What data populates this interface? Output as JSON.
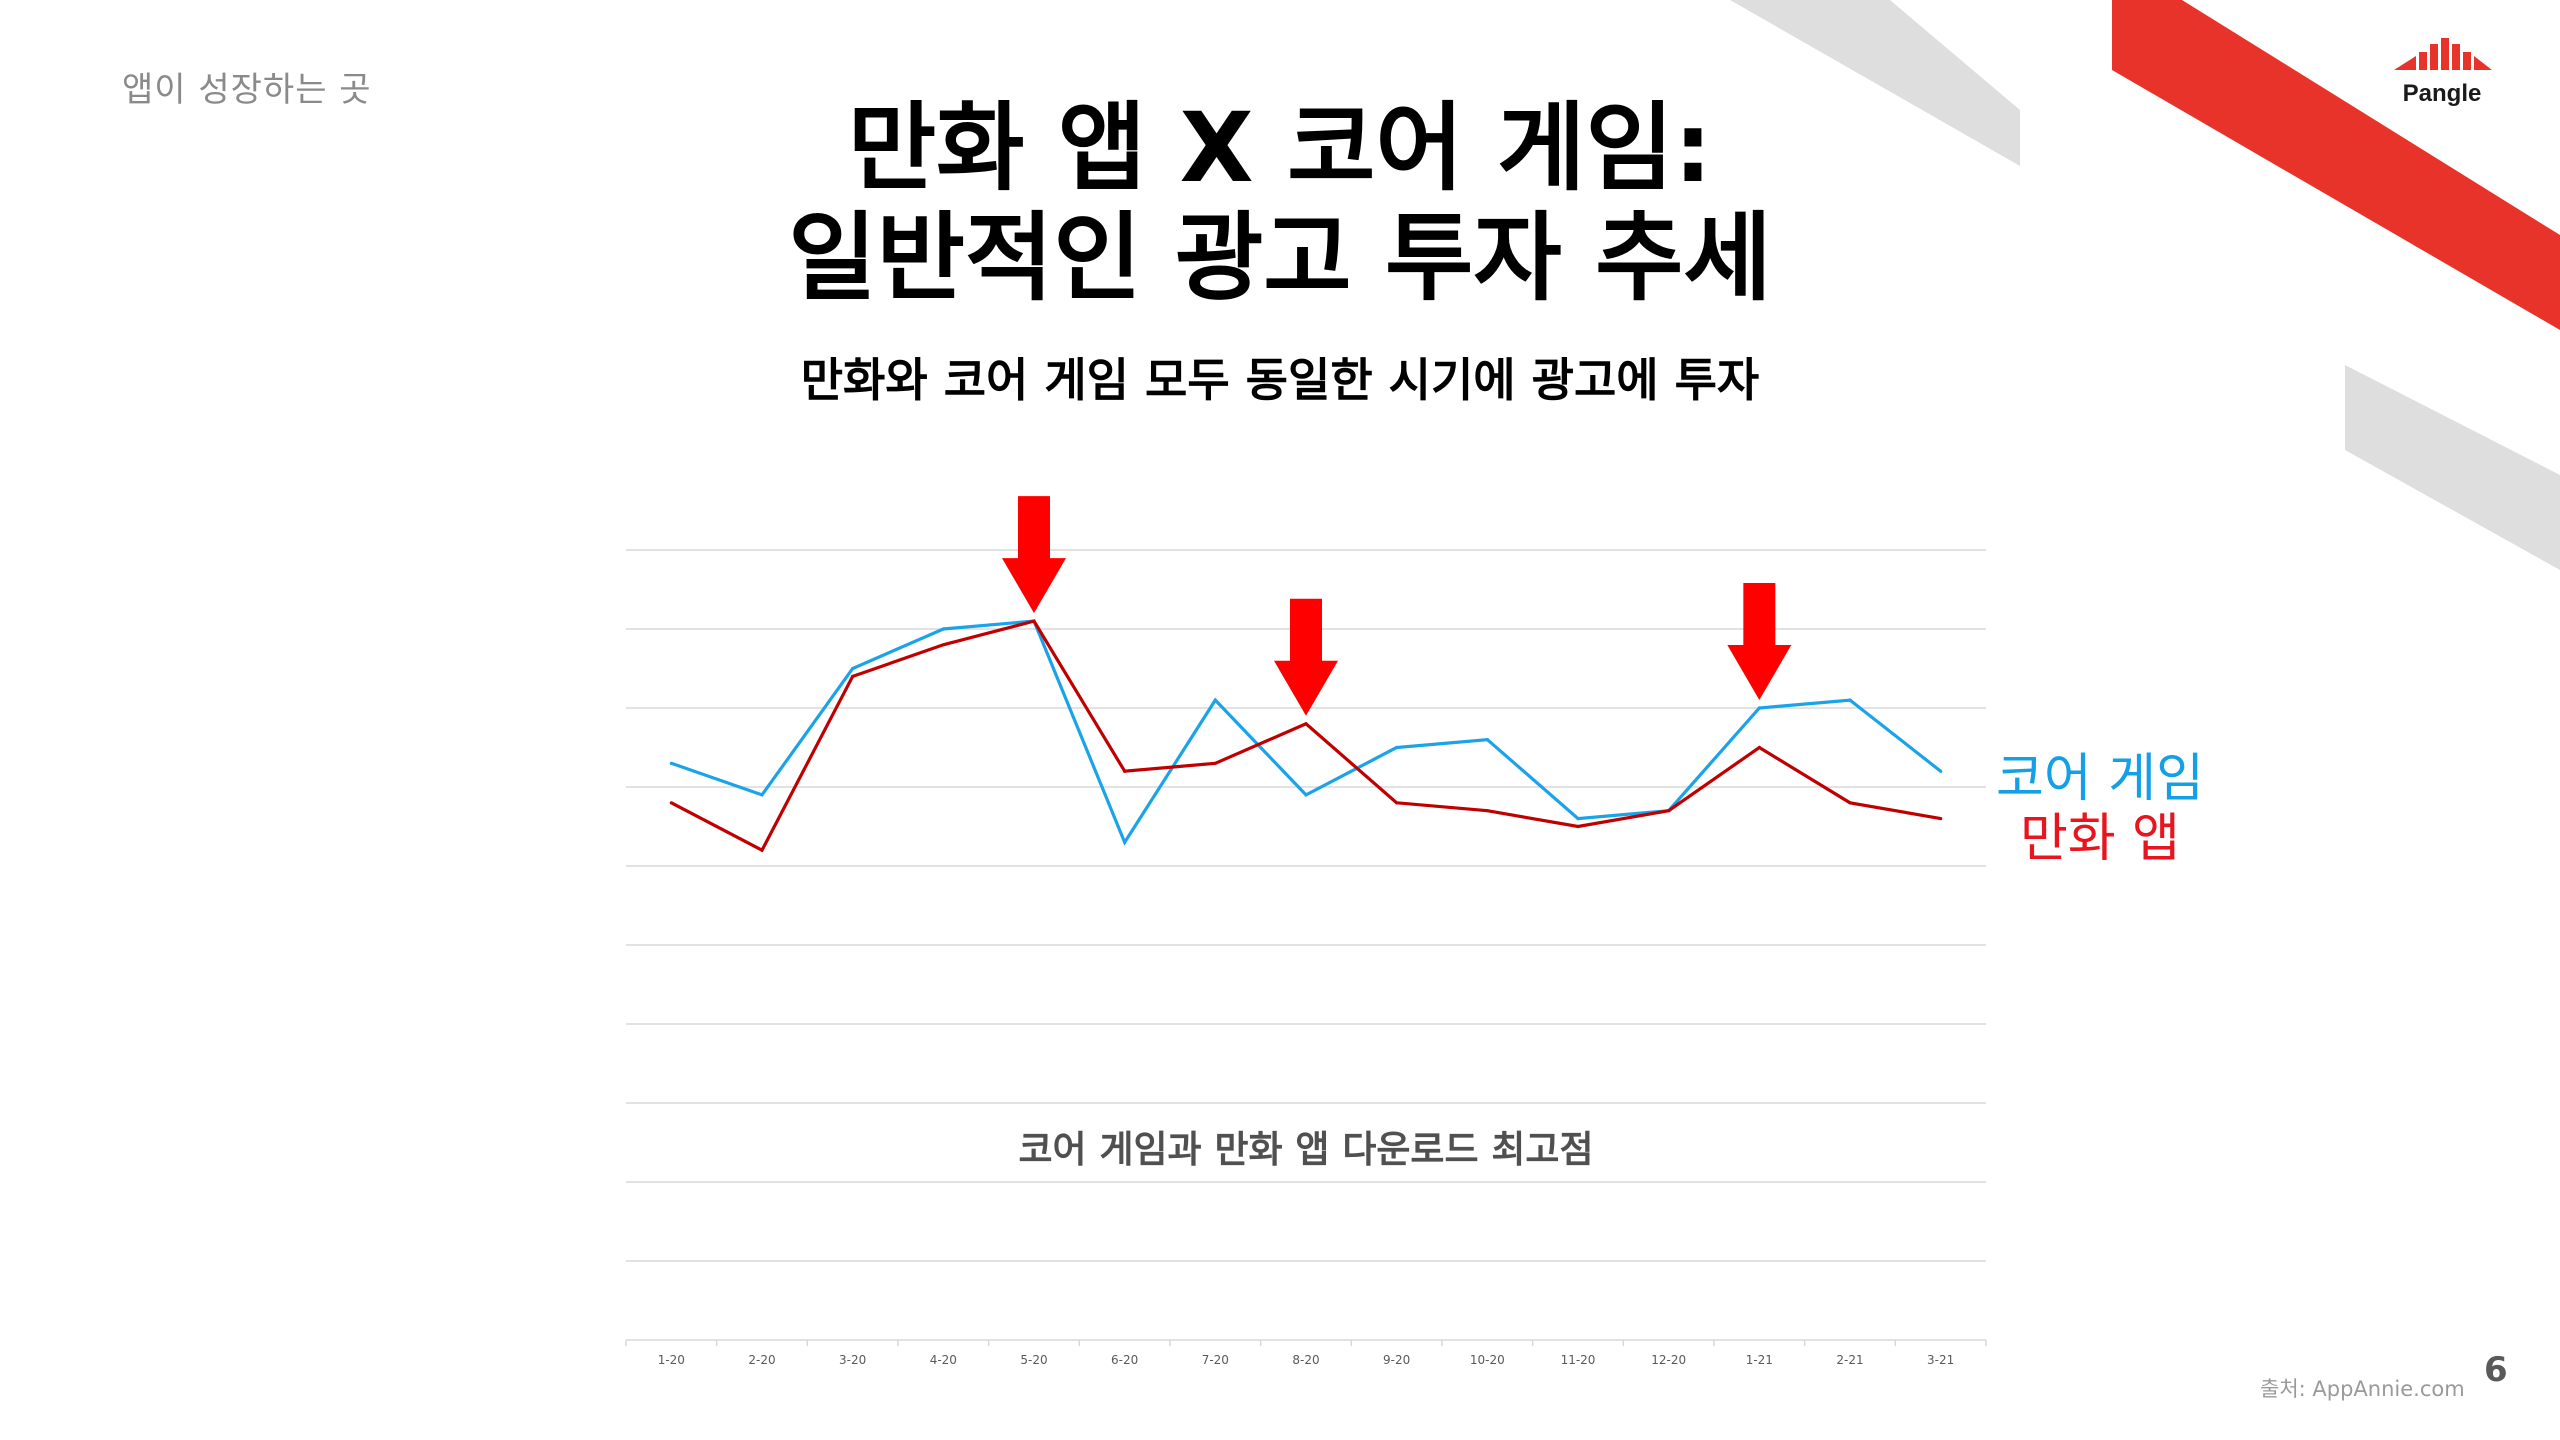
{
  "header": {
    "tagline": "앱이 성장하는 곳",
    "brand": "Pangle"
  },
  "slide": {
    "title_line1": "만화 앱 X 코어 게임:",
    "title_line2": "일반적인 광고 투자 추세",
    "subtitle": "만화와 코어 게임 모두 동일한 시기에 광고에 투자",
    "source": "출처: AppAnnie.com",
    "page_number": "6"
  },
  "colors": {
    "brand_red": "#e8332b",
    "core_game_line": "#1aa3e8",
    "manga_line": "#c00000",
    "arrow": "#ff0000",
    "grid": "#d9d9d9",
    "band_gray": "#dcdcdc"
  },
  "chart_data": {
    "type": "line",
    "title": "코어 게임과 만화 앱 다운로드 최고점",
    "categories": [
      "1-20",
      "2-20",
      "3-20",
      "4-20",
      "5-20",
      "6-20",
      "7-20",
      "8-20",
      "9-20",
      "10-20",
      "11-20",
      "12-20",
      "1-21",
      "2-21",
      "3-21"
    ],
    "ylim": [
      0,
      10
    ],
    "grid": true,
    "y_tick_labels": false,
    "series": [
      {
        "name": "코어 게임",
        "color": "#1aa3e8",
        "values": [
          7.3,
          6.9,
          8.5,
          9.0,
          9.1,
          6.3,
          8.1,
          6.9,
          7.5,
          7.6,
          6.6,
          6.7,
          8.0,
          8.1,
          7.2
        ]
      },
      {
        "name": "만화 앱",
        "color": "#c00000",
        "values": [
          6.8,
          6.2,
          8.4,
          8.8,
          9.1,
          7.2,
          7.3,
          7.8,
          6.8,
          6.7,
          6.5,
          6.7,
          7.5,
          6.8,
          6.6
        ]
      }
    ],
    "highlights": [
      "5-20",
      "8-20",
      "1-21"
    ],
    "legend_position": "right"
  }
}
